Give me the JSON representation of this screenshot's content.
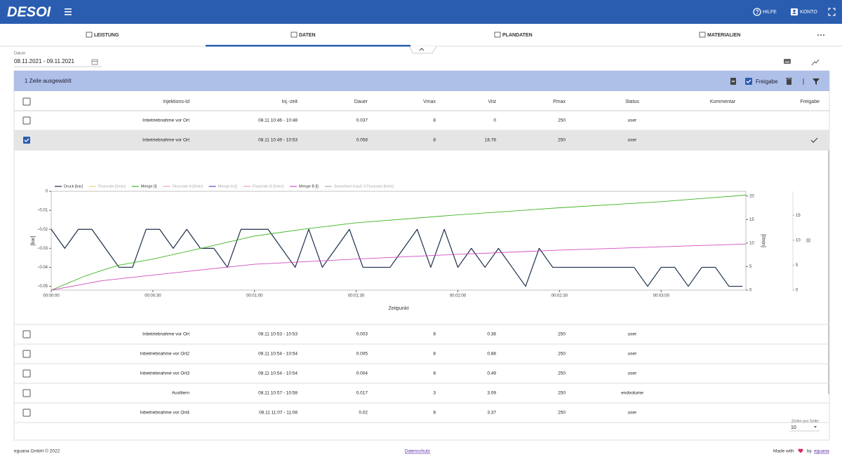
{
  "header": {
    "logo": "DESOI",
    "help": "HILFE",
    "account": "KONTO"
  },
  "tabs": [
    {
      "label": "LEISTUNG"
    },
    {
      "label": "DATEN",
      "active": true
    },
    {
      "label": "PLANDATEN"
    },
    {
      "label": "MATERIALIEN"
    }
  ],
  "filter": {
    "label": "Datum",
    "value": "08.11.2021 - 09.11.2021"
  },
  "table": {
    "selection": "1 Zeile ausgewählt",
    "approve_label": "Freigabe",
    "columns": [
      "Injektions-Id",
      "Inj.-zeit",
      "Dauer",
      "Vmax",
      "Vist",
      "Pmax",
      "Status",
      "Kommentar",
      "Freigabe"
    ],
    "rows": [
      {
        "cells": [
          "Inbetriebnahme vor Ort",
          "08.11 10:46 - 10:48",
          0.037,
          8,
          0,
          250,
          "user"
        ]
      },
      {
        "cells": [
          "Inbetriebnahme vor Ort",
          "08.11 10:49 - 10:53",
          0.058,
          8,
          18.78,
          250,
          "user"
        ],
        "selected": true,
        "approved": true
      },
      {
        "cells": [
          "Inbetriebnahme vor Ort",
          "08.11 10:53 - 10:53",
          0.003,
          8,
          0.38,
          250,
          "user"
        ]
      },
      {
        "cells": [
          "Inbetriebnahme vor Ort2",
          "08.11 10:54 - 10:54",
          0.005,
          8,
          0.88,
          250,
          "user"
        ]
      },
      {
        "cells": [
          "Inbetriebnahme vor Ort3",
          "08.11 10:54 - 10:54",
          0.004,
          8,
          0.49,
          250,
          "user"
        ]
      },
      {
        "cells": [
          "Auslitern",
          "08.11 10:57 - 10:58",
          0.017,
          3,
          3.09,
          250,
          "endvolume"
        ]
      },
      {
        "cells": [
          "Inbetriebnahme vor Ort4",
          "08.11 11:07 - 11:08",
          0.02,
          8,
          3.37,
          250,
          "user"
        ]
      }
    ],
    "rows_per_page_label": "Zeilen pro Seite:",
    "rows_per_page": 10
  },
  "chart_data": {
    "type": "line",
    "xlabel": "Zeitpunkt",
    "ylabel": "[bar]",
    "y2label": "[l/min]",
    "xlim": [
      0,
      205
    ],
    "xticks": [
      {
        "value": 0,
        "label": "00:00:00"
      },
      {
        "value": 30,
        "label": "00:00:30"
      },
      {
        "value": 60,
        "label": "00:01:00"
      },
      {
        "value": 90,
        "label": "00:01:30"
      },
      {
        "value": 120,
        "label": "00:02:00"
      },
      {
        "value": 150,
        "label": "00:02:30"
      },
      {
        "value": 180,
        "label": "00:03:00"
      }
    ],
    "ylim": [
      -0.052,
      0
    ],
    "yticks": [
      0,
      {
        "value": -0.01,
        "label": "−0.01"
      },
      {
        "value": -0.02,
        "label": "−0.02"
      },
      {
        "value": -0.03,
        "label": "−0.03"
      },
      {
        "value": -0.04,
        "label": "−0.04"
      },
      {
        "value": -0.05,
        "label": "−0.05"
      }
    ],
    "y2lim": [
      0,
      21
    ],
    "y2ticks": [
      0,
      5,
      10,
      15,
      20
    ],
    "y3lim": [
      0,
      19.8
    ],
    "y3ticks": [
      0,
      5,
      10,
      15
    ],
    "series": [
      {
        "name": "Druck [bar]",
        "color": "#1c2e4a",
        "visible": true,
        "x": [
          0,
          4,
          8,
          12,
          16,
          20,
          24,
          28,
          32,
          36,
          40,
          44,
          48,
          52,
          56,
          60,
          64,
          68,
          72,
          76,
          80,
          84,
          88,
          92,
          96,
          100,
          104,
          108,
          112,
          116,
          120,
          124,
          128,
          132,
          136,
          140,
          144,
          148,
          152,
          156,
          160,
          164,
          168,
          172,
          176,
          180,
          184,
          188,
          192,
          196,
          200,
          204
        ],
        "values": [
          -0.02,
          -0.03,
          -0.02,
          -0.02,
          -0.03,
          -0.04,
          -0.04,
          -0.02,
          -0.02,
          -0.03,
          -0.02,
          -0.03,
          -0.03,
          -0.04,
          -0.02,
          -0.02,
          -0.02,
          -0.03,
          -0.04,
          -0.02,
          -0.04,
          -0.03,
          -0.02,
          -0.04,
          -0.04,
          -0.04,
          -0.03,
          -0.02,
          -0.04,
          -0.02,
          -0.04,
          -0.03,
          -0.04,
          -0.03,
          -0.04,
          -0.05,
          -0.03,
          -0.04,
          -0.04,
          -0.04,
          -0.04,
          -0.04,
          -0.04,
          -0.04,
          -0.05,
          -0.04,
          -0.04,
          -0.05,
          -0.04,
          -0.04,
          -0.05,
          -0.05
        ]
      },
      {
        "name": "Flussrate [l/min]",
        "color": "#e6d77a",
        "visible": false
      },
      {
        "name": "Menge [l]",
        "color": "#3cb521",
        "visible": true,
        "axis": "y2",
        "x": [
          0,
          5,
          10,
          15,
          20,
          30,
          45,
          60,
          75,
          90,
          120,
          150,
          180,
          205
        ],
        "values": [
          0,
          1.5,
          3,
          4.2,
          5.3,
          6.6,
          9,
          11.5,
          13,
          14.3,
          16,
          17.5,
          18.8,
          20.2
        ]
      },
      {
        "name": "Flussrate A [l/min]",
        "color": "#f0a0a8",
        "visible": false
      },
      {
        "name": "Menge A [l]",
        "color": "#6a3fc4",
        "visible": false
      },
      {
        "name": "Flussrate B [l/min]",
        "color": "#e8a0c8",
        "visible": false
      },
      {
        "name": "Menge B [l]",
        "color": "#d04ec0",
        "visible": true,
        "axis": "y2",
        "x": [
          0,
          15,
          30,
          60,
          90,
          120,
          150,
          180,
          205
        ],
        "values": [
          0,
          2,
          3.2,
          5.5,
          6.6,
          7.6,
          8.5,
          9.2,
          9.8
        ]
      },
      {
        "name": "Smoothed Gauß 3 Flussrate [l/min]",
        "color": "#aaaaaa",
        "visible": false
      }
    ]
  },
  "footer": {
    "copyright": "eguana GmbH © 2022",
    "privacy": "Datenschutz",
    "made_with": "Made with",
    "by": "by",
    "link": "eguana"
  }
}
